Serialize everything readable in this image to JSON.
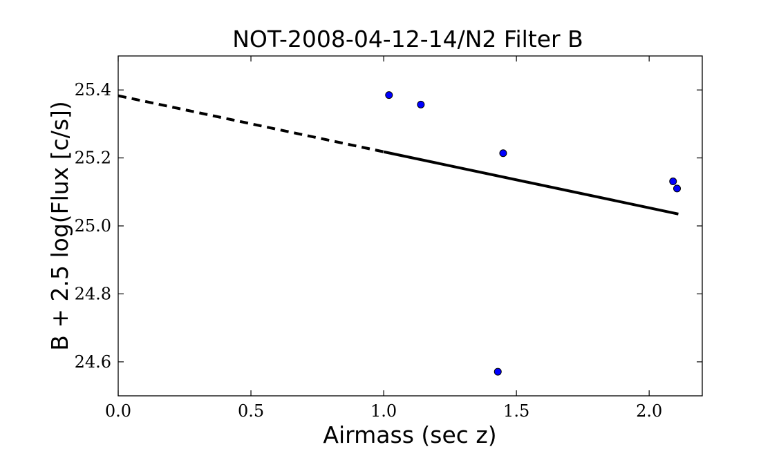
{
  "chart_data": {
    "type": "scatter",
    "title": "NOT-2008-04-12-14/N2 Filter B",
    "xlabel": "Airmass (sec z)",
    "ylabel": "B + 2.5 log(Flux [c/s])",
    "xlim": [
      0.0,
      2.2
    ],
    "ylim": [
      24.5,
      25.5
    ],
    "x_ticks": [
      "0.0",
      "0.5",
      "1.0",
      "1.5",
      "2.0"
    ],
    "y_ticks": [
      "24.6",
      "24.8",
      "25.0",
      "25.2",
      "25.4"
    ],
    "grid": false,
    "points": {
      "color": "#0000ff",
      "x": [
        1.02,
        1.14,
        1.45,
        1.43,
        2.09,
        2.105
      ],
      "y": [
        25.385,
        25.357,
        25.214,
        24.571,
        25.131,
        25.11
      ]
    },
    "fit_line": {
      "style": "solid",
      "color": "#000000",
      "x": [
        1.0,
        2.11
      ],
      "y": [
        25.218,
        25.035
      ]
    },
    "extrapolation_line": {
      "style": "dashed",
      "color": "#000000",
      "x": [
        0.0,
        1.0
      ],
      "y": [
        25.383,
        25.218
      ]
    }
  }
}
